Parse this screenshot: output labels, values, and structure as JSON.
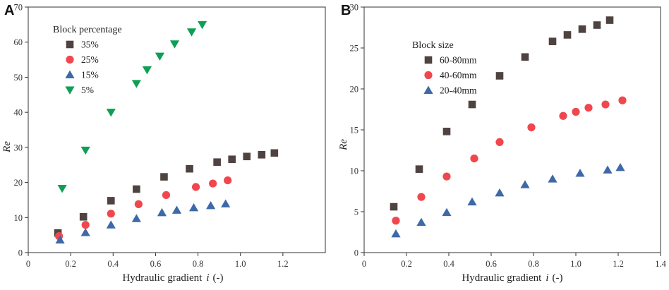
{
  "figure": {
    "panels": [
      {
        "panel_label": "A",
        "chart_data": {
          "type": "scatter",
          "title": "",
          "xlabel": "Hydraulic gradient",
          "xlabel_var": "i",
          "xlabel_unit": "(-)",
          "ylabel": "Re",
          "xlim": [
            0,
            1.4
          ],
          "ylim": [
            0,
            70
          ],
          "xticks": [
            "0",
            "0.2",
            "0.4",
            "0.6",
            "0.8",
            "1.0",
            "1.2"
          ],
          "xtick_values": [
            0,
            0.2,
            0.4,
            0.6,
            0.8,
            1.0,
            1.2
          ],
          "yticks": [
            "0",
            "10",
            "20",
            "30",
            "40",
            "50",
            "60",
            "70"
          ],
          "ytick_values": [
            0,
            10,
            20,
            30,
            40,
            50,
            60,
            70
          ],
          "legend_title": "Block percentage",
          "series": [
            {
              "name": "35%",
              "marker": "square",
              "color": "#4e4340",
              "x": [
                0.14,
                0.26,
                0.39,
                0.51,
                0.64,
                0.76,
                0.89,
                0.96,
                1.03,
                1.1,
                1.16
              ],
              "y": [
                5.6,
                10.2,
                14.8,
                18.1,
                21.6,
                23.9,
                25.8,
                26.6,
                27.4,
                27.9,
                28.4
              ]
            },
            {
              "name": "25%",
              "marker": "circle",
              "color": "#f0474f",
              "x": [
                0.145,
                0.27,
                0.39,
                0.52,
                0.65,
                0.79,
                0.87,
                0.94
              ],
              "y": [
                4.7,
                7.9,
                11.1,
                13.8,
                16.4,
                18.7,
                19.7,
                20.6
              ]
            },
            {
              "name": "15%",
              "marker": "triangle-up",
              "color": "#3d69a8",
              "x": [
                0.15,
                0.27,
                0.39,
                0.51,
                0.63,
                0.7,
                0.78,
                0.86,
                0.93
              ],
              "y": [
                3.6,
                5.7,
                7.9,
                9.7,
                11.4,
                12.1,
                12.8,
                13.4,
                13.9
              ]
            },
            {
              "name": "5%",
              "marker": "triangle-down",
              "color": "#0e9f56",
              "x": [
                0.16,
                0.27,
                0.39,
                0.51,
                0.56,
                0.62,
                0.69,
                0.77,
                0.82
              ],
              "y": [
                18.3,
                29.2,
                40.0,
                48.2,
                52.1,
                56.0,
                59.5,
                62.9,
                65.0
              ]
            }
          ]
        }
      },
      {
        "panel_label": "B",
        "chart_data": {
          "type": "scatter",
          "title": "",
          "xlabel": "Hydraulic gradient",
          "xlabel_var": "i",
          "xlabel_unit": "(-)",
          "ylabel": "Re",
          "xlim": [
            0,
            1.4
          ],
          "ylim": [
            0,
            30
          ],
          "xticks": [
            "0",
            "0.2",
            "0.4",
            "0.6",
            "0.8",
            "1.0",
            "1.2",
            "1.4"
          ],
          "xtick_values": [
            0,
            0.2,
            0.4,
            0.6,
            0.8,
            1.0,
            1.2,
            1.4
          ],
          "yticks": [
            "0",
            "5",
            "10",
            "15",
            "20",
            "25",
            "30"
          ],
          "ytick_values": [
            0,
            5,
            10,
            15,
            20,
            25,
            30
          ],
          "legend_title": "Block size",
          "series": [
            {
              "name": "60-80mm",
              "marker": "square",
              "color": "#4e4340",
              "x": [
                0.14,
                0.26,
                0.39,
                0.51,
                0.64,
                0.76,
                0.89,
                0.96,
                1.03,
                1.1,
                1.16
              ],
              "y": [
                5.6,
                10.2,
                14.8,
                18.1,
                21.6,
                23.9,
                25.8,
                26.6,
                27.3,
                27.8,
                28.4
              ]
            },
            {
              "name": "40-60mm",
              "marker": "circle",
              "color": "#f0474f",
              "x": [
                0.15,
                0.27,
                0.39,
                0.52,
                0.64,
                0.79,
                0.94,
                1.0,
                1.06,
                1.14,
                1.22
              ],
              "y": [
                3.9,
                6.8,
                9.3,
                11.5,
                13.5,
                15.3,
                16.7,
                17.2,
                17.7,
                18.1,
                18.6
              ]
            },
            {
              "name": "20-40mm",
              "marker": "triangle-up",
              "color": "#3d69a8",
              "x": [
                0.15,
                0.27,
                0.39,
                0.51,
                0.64,
                0.76,
                0.89,
                1.02,
                1.15,
                1.21
              ],
              "y": [
                2.3,
                3.7,
                4.9,
                6.2,
                7.3,
                8.3,
                9.0,
                9.7,
                10.1,
                10.4
              ]
            }
          ]
        }
      }
    ]
  }
}
